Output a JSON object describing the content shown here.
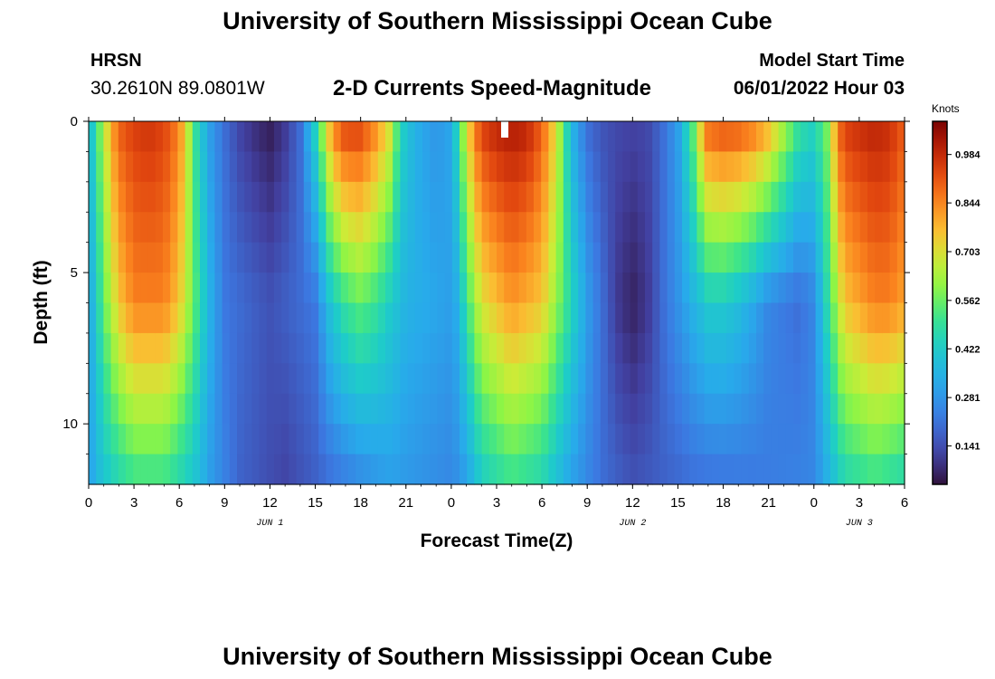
{
  "header": {
    "title": "University of Southern Mississippi Ocean Cube",
    "station": "HRSN",
    "coords": "30.2610N  89.0801W",
    "subtitle": "2-D Currents Speed-Magnitude",
    "model_label": "Model Start Time",
    "model_time": "06/01/2022 Hour 03"
  },
  "footer": {
    "title": "University of Southern Mississippi Ocean Cube"
  },
  "chart_data": {
    "type": "heatmap",
    "title": "2-D Currents Speed-Magnitude",
    "xlabel": "Forecast Time(Z)",
    "ylabel": "Depth (ft)",
    "x_hours_range": [
      0,
      54
    ],
    "xticks": [
      "0",
      "3",
      "6",
      "9",
      "12",
      "15",
      "18",
      "21",
      "0",
      "3",
      "6",
      "9",
      "12",
      "15",
      "18",
      "21",
      "0",
      "3",
      "6"
    ],
    "date_labels": [
      {
        "label": "JUN 1",
        "at_hour": 12
      },
      {
        "label": "JUN 2",
        "at_hour": 36
      },
      {
        "label": "JUN 3",
        "at_hour": 51
      }
    ],
    "ylim": [
      0,
      12
    ],
    "yticks": [
      "0",
      "5",
      "10"
    ],
    "y_inverted": true,
    "colorbar": {
      "title": "Knots",
      "ticks": [
        "0.984",
        "0.844",
        "0.703",
        "0.562",
        "0.422",
        "0.281",
        "0.141"
      ],
      "tick_values": [
        0.984,
        0.844,
        0.703,
        0.562,
        0.422,
        0.281,
        0.141
      ],
      "range": [
        0.03,
        1.08
      ],
      "palette": "turbo"
    },
    "time_profiles": {
      "surface_hours": [
        0,
        1,
        1.5,
        2,
        3,
        4,
        5,
        6,
        6.5,
        7,
        7.5,
        8,
        9,
        10,
        11,
        12,
        13,
        14,
        15,
        16,
        16.5,
        17,
        18,
        19,
        20,
        20.5,
        21,
        22,
        23,
        24,
        24.5,
        25,
        25.5,
        26,
        27,
        28,
        29,
        30,
        31,
        31.5,
        32,
        33,
        34,
        35,
        36,
        37,
        38,
        39,
        40,
        40.5,
        41,
        42,
        43,
        44,
        45,
        46,
        47,
        48,
        49,
        49.5,
        50,
        51,
        52,
        53,
        54
      ],
      "surface_values": [
        0.35,
        0.65,
        0.8,
        0.9,
        0.95,
        0.97,
        0.94,
        0.85,
        0.7,
        0.5,
        0.4,
        0.3,
        0.2,
        0.12,
        0.08,
        0.05,
        0.1,
        0.2,
        0.45,
        0.8,
        0.9,
        0.95,
        0.95,
        0.85,
        0.7,
        0.5,
        0.4,
        0.32,
        0.28,
        0.32,
        0.5,
        0.7,
        0.85,
        0.95,
        1.0,
        1.02,
        1.0,
        0.9,
        0.7,
        0.5,
        0.35,
        0.2,
        0.15,
        0.13,
        0.12,
        0.13,
        0.2,
        0.3,
        0.55,
        0.75,
        0.9,
        0.93,
        0.92,
        0.88,
        0.8,
        0.65,
        0.5,
        0.45,
        0.6,
        0.85,
        0.95,
        0.98,
        1.0,
        0.98,
        0.9
      ],
      "mid_hours": [
        0,
        1,
        2,
        3,
        5,
        6,
        7,
        8,
        9,
        12,
        15,
        16,
        17,
        18,
        19,
        20,
        21,
        24,
        24.5,
        25,
        26,
        28,
        30,
        31,
        32,
        33,
        35,
        36,
        37,
        38,
        40,
        41,
        42,
        43,
        44,
        45,
        47,
        48,
        49,
        50,
        52,
        53,
        54
      ],
      "mid_values": [
        0.3,
        0.55,
        0.75,
        0.85,
        0.85,
        0.75,
        0.55,
        0.35,
        0.22,
        0.15,
        0.22,
        0.4,
        0.5,
        0.55,
        0.5,
        0.42,
        0.35,
        0.3,
        0.35,
        0.5,
        0.7,
        0.82,
        0.75,
        0.6,
        0.45,
        0.3,
        0.1,
        0.06,
        0.1,
        0.2,
        0.35,
        0.42,
        0.42,
        0.38,
        0.32,
        0.25,
        0.2,
        0.25,
        0.5,
        0.75,
        0.85,
        0.85,
        0.8
      ],
      "bottom_hours": [
        0,
        1,
        2,
        3,
        5,
        7,
        8,
        10,
        13,
        16,
        20,
        24,
        25,
        26,
        28,
        30,
        32,
        34,
        36,
        40,
        44,
        48,
        49,
        50,
        52,
        54
      ],
      "bottom_values": [
        0.3,
        0.4,
        0.45,
        0.5,
        0.5,
        0.4,
        0.3,
        0.18,
        0.12,
        0.2,
        0.3,
        0.25,
        0.3,
        0.42,
        0.5,
        0.45,
        0.3,
        0.2,
        0.15,
        0.2,
        0.22,
        0.25,
        0.35,
        0.45,
        0.5,
        0.45
      ]
    }
  }
}
